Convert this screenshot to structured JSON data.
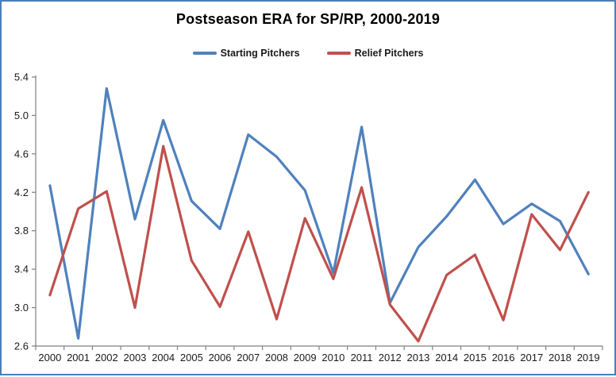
{
  "frame": {
    "border_color": "#4a7ebb",
    "background": "#ffffff"
  },
  "chart_data": {
    "type": "line",
    "title": "Postseason ERA for SP/RP, 2000-2019",
    "xlabel": "",
    "ylabel": "",
    "categories": [
      "2000",
      "2001",
      "2002",
      "2003",
      "2004",
      "2005",
      "2006",
      "2007",
      "2008",
      "2009",
      "2010",
      "2011",
      "2012",
      "2013",
      "2014",
      "2015",
      "2016",
      "2017",
      "2018",
      "2019"
    ],
    "series": [
      {
        "name": "Starting Pitchers",
        "color": "#4F81BD",
        "values": [
          4.27,
          2.68,
          5.28,
          3.92,
          4.95,
          4.11,
          3.82,
          4.8,
          4.57,
          4.22,
          3.36,
          4.88,
          3.05,
          3.63,
          3.95,
          4.33,
          3.87,
          4.08,
          3.9,
          3.35
        ]
      },
      {
        "name": "Relief Pitchers",
        "color": "#C0504D",
        "values": [
          3.13,
          4.03,
          4.21,
          3.0,
          4.68,
          3.49,
          3.01,
          3.79,
          2.88,
          3.93,
          3.3,
          4.25,
          3.03,
          2.65,
          3.34,
          3.55,
          2.87,
          3.97,
          3.6,
          4.2
        ]
      }
    ],
    "ylim": [
      2.6,
      5.4
    ],
    "yticks": [
      2.6,
      3.0,
      3.4,
      3.8,
      4.2,
      4.6,
      5.0,
      5.4
    ],
    "grid": false,
    "legend_position": "top-center",
    "axis_color": "#808080",
    "tick_label_color": "#1a1a1a"
  }
}
